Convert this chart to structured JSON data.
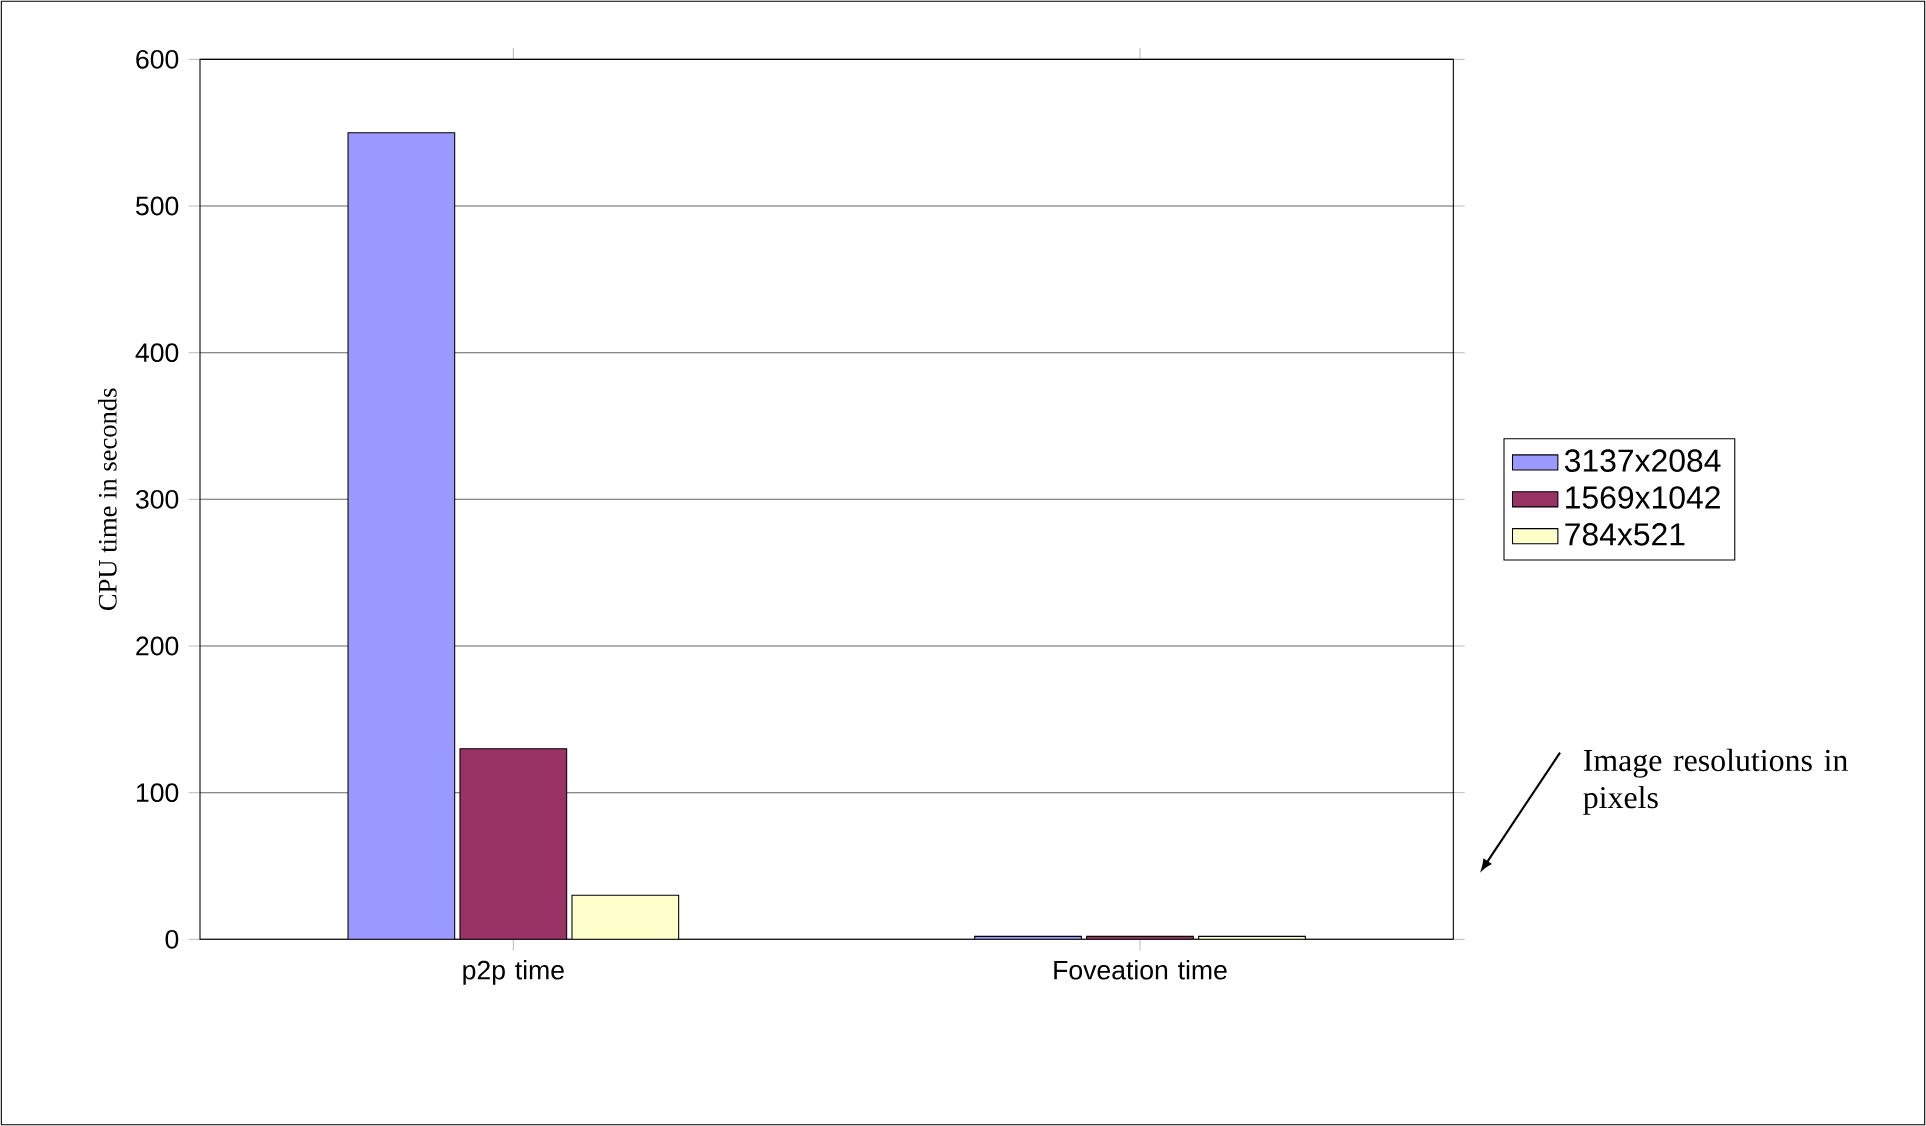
{
  "chart_data": {
    "type": "bar",
    "ylabel": "CPU time in seconds",
    "categories": [
      "p2p time",
      "Foveation time"
    ],
    "series": [
      {
        "name": "3137x2084",
        "color": "#9999ff",
        "values": [
          550,
          2
        ]
      },
      {
        "name": "1569x1042",
        "color": "#993366",
        "values": [
          130,
          2
        ]
      },
      {
        "name": "784x521",
        "color": "#ffffcc",
        "values": [
          30,
          2
        ]
      }
    ],
    "ylim": [
      0,
      600
    ],
    "yticks": [
      0,
      100,
      200,
      300,
      400,
      500,
      600
    ],
    "grid": "y",
    "legend": "right",
    "annotations": [
      "Image resolutions in pixels"
    ]
  }
}
